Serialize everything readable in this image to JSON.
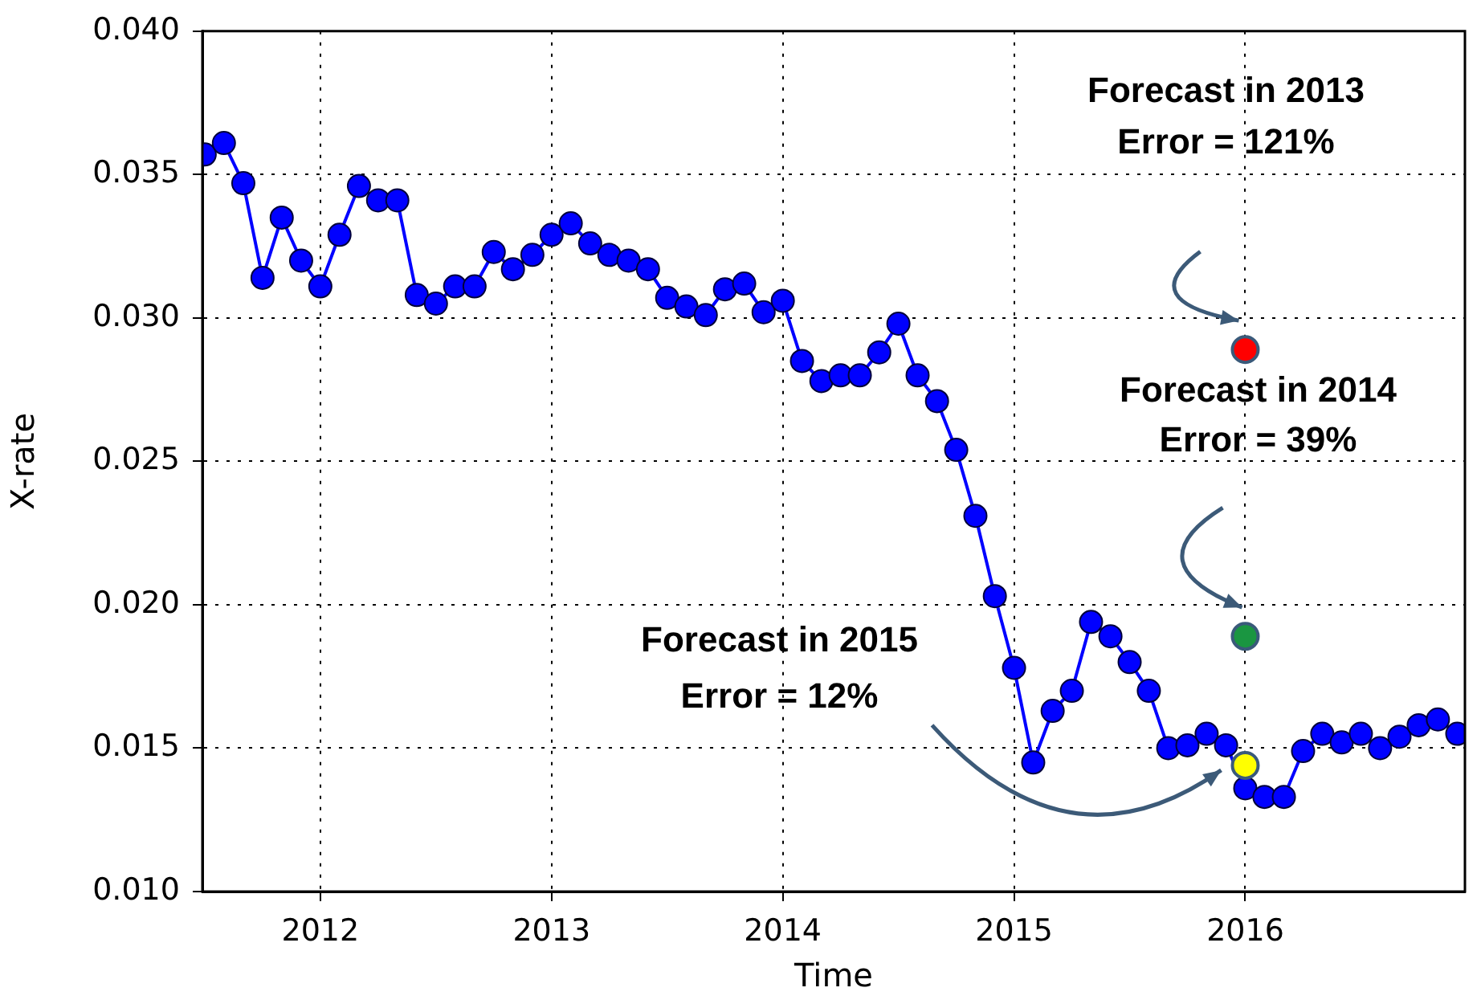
{
  "chart_data": {
    "type": "line",
    "xlabel": "Time",
    "ylabel": "X-rate",
    "xlim": [
      2011.49,
      2016.95
    ],
    "xticks": [
      2012,
      2013,
      2014,
      2015,
      2016
    ],
    "ylim": [
      0.01,
      0.04
    ],
    "yticks": [
      {
        "value": 0.01,
        "label": "0.010"
      },
      {
        "value": 0.015,
        "label": "0.015"
      },
      {
        "value": 0.02,
        "label": "0.020"
      },
      {
        "value": 0.025,
        "label": "0.025"
      },
      {
        "value": 0.03,
        "label": "0.030"
      },
      {
        "value": 0.035,
        "label": "0.035"
      },
      {
        "value": 0.04,
        "label": "0.040"
      }
    ],
    "grid": true,
    "legend": false,
    "marker": "circle",
    "line_style": "solid",
    "series": [
      {
        "color": "#0000ff",
        "x": [
          2011.5,
          2011.583,
          2011.667,
          2011.75,
          2011.833,
          2011.917,
          2012.0,
          2012.083,
          2012.167,
          2012.25,
          2012.333,
          2012.417,
          2012.5,
          2012.583,
          2012.667,
          2012.75,
          2012.833,
          2012.917,
          2013.0,
          2013.083,
          2013.167,
          2013.25,
          2013.333,
          2013.417,
          2013.5,
          2013.583,
          2013.667,
          2013.75,
          2013.833,
          2013.917,
          2014.0,
          2014.083,
          2014.167,
          2014.25,
          2014.333,
          2014.417,
          2014.5,
          2014.583,
          2014.667,
          2014.75,
          2014.833,
          2014.917,
          2015.0,
          2015.083,
          2015.167,
          2015.25,
          2015.333,
          2015.417,
          2015.5,
          2015.583,
          2015.667,
          2015.75,
          2015.833,
          2015.917,
          2016.0,
          2016.083,
          2016.167,
          2016.25,
          2016.333,
          2016.417,
          2016.5,
          2016.583,
          2016.667,
          2016.75,
          2016.833,
          2016.917
        ],
        "values": [
          0.0357,
          0.0361,
          0.0347,
          0.0314,
          0.0335,
          0.032,
          0.0311,
          0.0329,
          0.0346,
          0.0341,
          0.0341,
          0.0308,
          0.0305,
          0.0311,
          0.0311,
          0.0323,
          0.0317,
          0.0322,
          0.0329,
          0.0333,
          0.0326,
          0.0322,
          0.032,
          0.0317,
          0.0307,
          0.0304,
          0.0301,
          0.031,
          0.0312,
          0.0302,
          0.0306,
          0.0285,
          0.0278,
          0.028,
          0.028,
          0.0288,
          0.0298,
          0.028,
          0.0271,
          0.0254,
          0.0231,
          0.0203,
          0.0178,
          0.0145,
          0.0163,
          0.017,
          0.0194,
          0.0189,
          0.018,
          0.017,
          0.015,
          0.0151,
          0.0155,
          0.0151,
          0.0136,
          0.0133,
          0.0133,
          0.0149,
          0.0155,
          0.0152,
          0.0155,
          0.015,
          0.0154,
          0.0158,
          0.016,
          0.0155
        ]
      },
      {
        "type": "scatter",
        "x": [
          2016,
          2016,
          2016
        ],
        "values": [
          0.0289,
          0.0189,
          0.0144
        ],
        "colors": [
          "#ff0000",
          "#1a9641",
          "#ffff00"
        ]
      }
    ],
    "annotations": [
      "Forecast in 2013\nError = 121%",
      "Forecast in 2014\nError = 39%",
      "Forecast in 2015\nError = 12%"
    ]
  }
}
